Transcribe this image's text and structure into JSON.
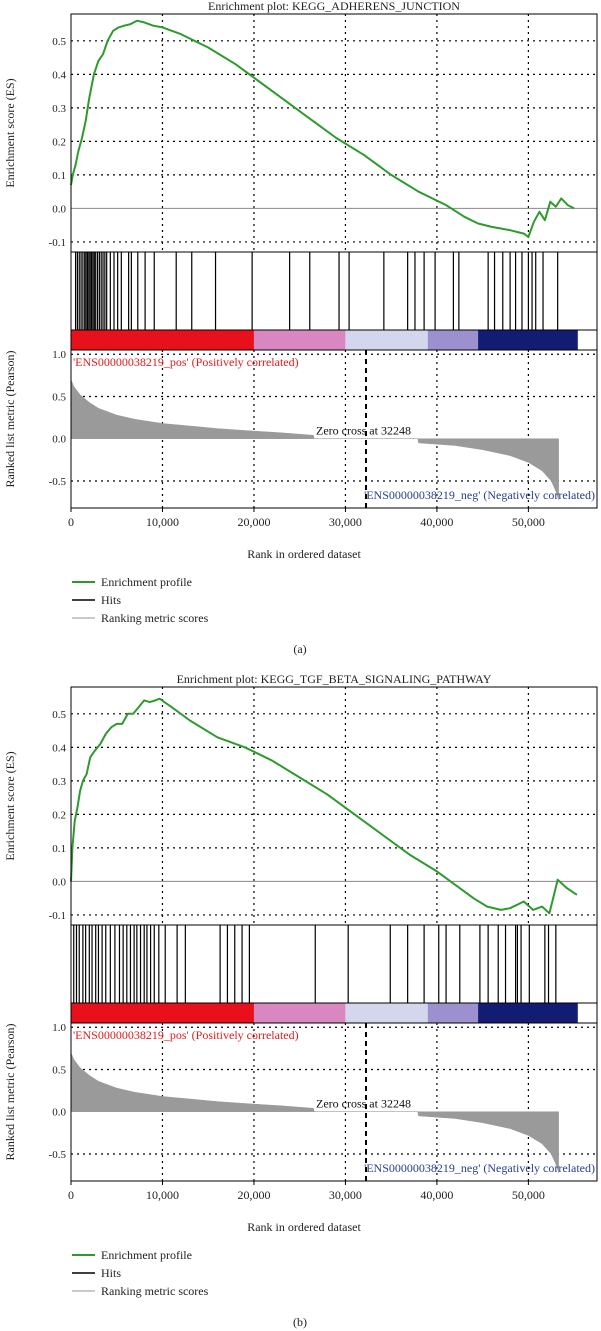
{
  "colors": {
    "es_line": "#2e9a2e",
    "hits": "#000000",
    "metric_fill": "#9a9a9a",
    "pos_label": "#e31a1c",
    "neg_label": "#27408b",
    "grid": "#000000",
    "heat_pos_strong": "#e8101a",
    "heat_pos_mid": "#d987c0",
    "heat_neutral": "#d4d6ee",
    "heat_neg_mid": "#9c90cf",
    "heat_neg_strong": "#121c73"
  },
  "legend": {
    "enrichment_profile": "Enrichment profile",
    "hits": "Hits",
    "ranking_metric_scores": "Ranking metric scores"
  },
  "chart_data": [
    {
      "type": "line",
      "panel_label": "(a)",
      "title": "Enrichment plot: KEGG_ADHERENS_JUNCTION",
      "ylabel_es": "Enrichment score (ES)",
      "ylabel_metric": "Ranked list metric (Pearson)",
      "xlabel": "Rank in ordered dataset",
      "xlim": [
        0,
        57500
      ],
      "xticks": [
        0,
        10000,
        20000,
        30000,
        40000,
        50000
      ],
      "xtick_labels": [
        "0",
        "10,000",
        "20,000",
        "30,000",
        "40,000",
        "50,000"
      ],
      "es_ylim": [
        -0.13,
        0.58
      ],
      "es_yticks": [
        -0.1,
        0.0,
        0.1,
        0.2,
        0.3,
        0.4,
        0.5
      ],
      "es_ytick_labels": [
        "-0.1",
        "0.0",
        "0.1",
        "0.2",
        "0.3",
        "0.4",
        "0.5"
      ],
      "metric_ylim": [
        -0.82,
        1.05
      ],
      "metric_yticks": [
        -0.5,
        0.0,
        0.5,
        1.0
      ],
      "metric_ytick_labels": [
        "-0.5",
        "0.0",
        "0.5",
        "1.0"
      ],
      "es_curve": {
        "x": [
          0,
          200,
          500,
          800,
          1200,
          1600,
          2000,
          2500,
          3000,
          3500,
          4000,
          4600,
          5200,
          5800,
          6500,
          7200,
          8000,
          9000,
          10000,
          12000,
          15000,
          18000,
          20000,
          23000,
          26000,
          29000,
          32000,
          35000,
          38000,
          41000,
          43000,
          44500,
          46000,
          48000,
          49500,
          50000,
          50600,
          51200,
          51800,
          52400,
          53000,
          53600,
          54300,
          55000
        ],
        "y": [
          0.07,
          0.1,
          0.13,
          0.17,
          0.21,
          0.26,
          0.33,
          0.4,
          0.44,
          0.46,
          0.5,
          0.53,
          0.54,
          0.545,
          0.55,
          0.56,
          0.555,
          0.545,
          0.54,
          0.52,
          0.48,
          0.43,
          0.39,
          0.33,
          0.27,
          0.21,
          0.16,
          0.1,
          0.05,
          0.01,
          -0.025,
          -0.045,
          -0.055,
          -0.065,
          -0.075,
          -0.085,
          -0.04,
          -0.01,
          -0.035,
          0.02,
          0.005,
          0.03,
          0.01,
          0.0
        ]
      },
      "hits_x": [
        500,
        700,
        900,
        1100,
        1300,
        1500,
        1650,
        1800,
        1950,
        2100,
        2250,
        2400,
        2550,
        2700,
        2900,
        3100,
        3300,
        3500,
        3700,
        3900,
        4300,
        4700,
        5100,
        5500,
        6300,
        6600,
        7300,
        8100,
        9100,
        11500,
        13200,
        15800,
        19800,
        23900,
        26100,
        29300,
        30400,
        34200,
        36800,
        37600,
        38600,
        39800,
        41800,
        42400,
        45600,
        46300,
        47200,
        48000,
        48600,
        49300,
        50000,
        50400,
        50800,
        51600,
        53200
      ],
      "metric_curve": {
        "x": [
          0,
          300,
          1000,
          2000,
          3000,
          5000,
          7000,
          10000,
          13000,
          16000,
          20000,
          23000,
          26500,
          26600,
          37900,
          38000,
          42000,
          45000,
          48000,
          50000,
          51500,
          52500,
          53000,
          53300
        ],
        "y": [
          0.7,
          0.62,
          0.52,
          0.43,
          0.36,
          0.28,
          0.23,
          0.18,
          0.15,
          0.12,
          0.09,
          0.07,
          0.04,
          0.0,
          0.0,
          -0.05,
          -0.08,
          -0.13,
          -0.2,
          -0.28,
          -0.38,
          -0.5,
          -0.62,
          -0.72
        ]
      },
      "heatmap_bands": [
        {
          "from": 0,
          "to": 20000,
          "level": "pos_strong"
        },
        {
          "from": 20000,
          "to": 30000,
          "level": "pos_mid"
        },
        {
          "from": 30000,
          "to": 39000,
          "level": "neutral"
        },
        {
          "from": 39000,
          "to": 44500,
          "level": "neg_mid"
        },
        {
          "from": 44500,
          "to": 55400,
          "level": "neg_strong"
        }
      ],
      "pos_label": "'ENS00000038219_pos' (Positively correlated)",
      "neg_label": "'ENS00000038219_neg' (Negatively correlated)",
      "zero_cross": {
        "x": 32248,
        "label": "Zero cross at 32248"
      }
    },
    {
      "type": "line",
      "panel_label": "(b)",
      "title": "Enrichment plot: KEGG_TGF_BETA_SIGNALING_PATHWAY",
      "ylabel_es": "Enrichment score (ES)",
      "ylabel_metric": "Ranked list metric (Pearson)",
      "xlabel": "Rank in ordered dataset",
      "xlim": [
        0,
        57500
      ],
      "xticks": [
        0,
        10000,
        20000,
        30000,
        40000,
        50000
      ],
      "xtick_labels": [
        "0",
        "10,000",
        "20,000",
        "30,000",
        "40,000",
        "50,000"
      ],
      "es_ylim": [
        -0.13,
        0.58
      ],
      "es_yticks": [
        -0.1,
        0.0,
        0.1,
        0.2,
        0.3,
        0.4,
        0.5
      ],
      "es_ytick_labels": [
        "-0.1",
        "0.0",
        "0.1",
        "0.2",
        "0.3",
        "0.4",
        "0.5"
      ],
      "metric_ylim": [
        -0.82,
        1.05
      ],
      "metric_yticks": [
        -0.5,
        0.0,
        0.5,
        1.0
      ],
      "metric_ytick_labels": [
        "-0.5",
        "0.0",
        "0.5",
        "1.0"
      ],
      "es_curve": {
        "x": [
          0,
          150,
          400,
          700,
          1000,
          1300,
          1700,
          2100,
          2600,
          3200,
          3800,
          4400,
          5000,
          5600,
          6200,
          6800,
          7400,
          8000,
          8600,
          9200,
          9700,
          10200,
          11000,
          13000,
          16000,
          19000,
          22000,
          25000,
          28000,
          31000,
          34000,
          37000,
          40000,
          42000,
          44000,
          45500,
          47000,
          48000,
          49500,
          50500,
          51500,
          52300,
          53200,
          54200,
          55300
        ],
        "y": [
          0.0,
          0.1,
          0.18,
          0.22,
          0.27,
          0.3,
          0.32,
          0.37,
          0.39,
          0.41,
          0.44,
          0.46,
          0.47,
          0.47,
          0.5,
          0.5,
          0.52,
          0.54,
          0.535,
          0.54,
          0.545,
          0.535,
          0.52,
          0.48,
          0.43,
          0.4,
          0.36,
          0.31,
          0.26,
          0.2,
          0.14,
          0.08,
          0.03,
          -0.01,
          -0.05,
          -0.075,
          -0.085,
          -0.08,
          -0.06,
          -0.085,
          -0.075,
          -0.095,
          0.005,
          -0.02,
          -0.04
        ]
      },
      "hits_x": [
        300,
        600,
        900,
        1300,
        1600,
        2000,
        2300,
        2700,
        3000,
        3400,
        3800,
        4300,
        4800,
        5300,
        5700,
        6100,
        6500,
        6900,
        7200,
        7600,
        8000,
        8300,
        8700,
        9100,
        9600,
        10300,
        11600,
        12500,
        16300,
        17100,
        17900,
        18700,
        19500,
        26700,
        30300,
        34900,
        36800,
        38600,
        40200,
        41000,
        42500,
        44700,
        45600,
        46700,
        47500,
        48600,
        48800,
        49200,
        50100,
        51800,
        52200,
        53000
      ],
      "metric_curve": {
        "x": [
          0,
          300,
          1000,
          2000,
          3000,
          5000,
          7000,
          10000,
          13000,
          16000,
          20000,
          23000,
          26500,
          26600,
          37900,
          38000,
          42000,
          45000,
          48000,
          50000,
          51500,
          52500,
          53000,
          53300
        ],
        "y": [
          0.7,
          0.62,
          0.52,
          0.43,
          0.36,
          0.28,
          0.23,
          0.18,
          0.15,
          0.12,
          0.09,
          0.07,
          0.04,
          0.0,
          0.0,
          -0.05,
          -0.08,
          -0.13,
          -0.2,
          -0.28,
          -0.38,
          -0.5,
          -0.62,
          -0.72
        ]
      },
      "heatmap_bands": [
        {
          "from": 0,
          "to": 20000,
          "level": "pos_strong"
        },
        {
          "from": 20000,
          "to": 30000,
          "level": "pos_mid"
        },
        {
          "from": 30000,
          "to": 39000,
          "level": "neutral"
        },
        {
          "from": 39000,
          "to": 44500,
          "level": "neg_mid"
        },
        {
          "from": 44500,
          "to": 55400,
          "level": "neg_strong"
        }
      ],
      "pos_label": "'ENS00000038219_pos' (Positively correlated)",
      "neg_label": "'ENS00000038219_neg' (Negatively correlated)",
      "zero_cross": {
        "x": 32248,
        "label": "Zero cross at 32248"
      }
    }
  ]
}
